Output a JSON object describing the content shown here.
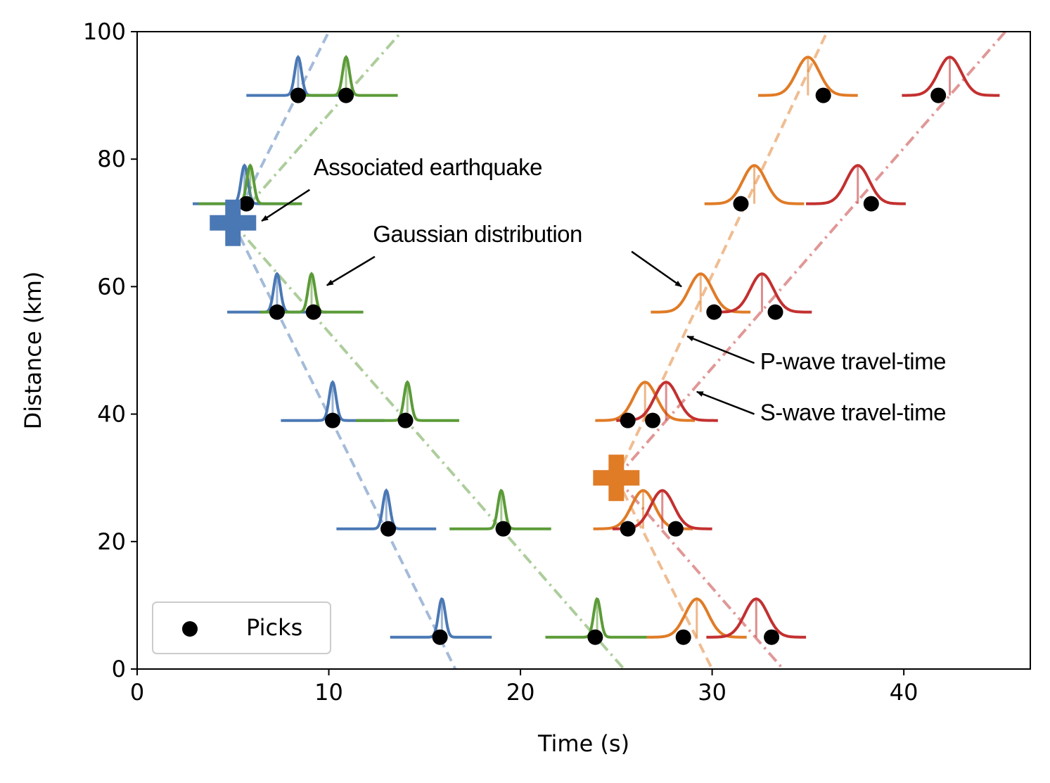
{
  "chart_data": {
    "type": "scatter",
    "title": "",
    "xlabel": "Time (s)",
    "ylabel": "Distance (km)",
    "xlim": [
      0,
      46.6
    ],
    "ylim": [
      0,
      100
    ],
    "xticks": [
      0,
      10,
      20,
      30,
      40
    ],
    "yticks": [
      0,
      20,
      40,
      60,
      80,
      100
    ],
    "grid": false,
    "legend": {
      "position": "bottom-left",
      "label": "Picks"
    },
    "colors": {
      "p1": "#4a78b4",
      "s1": "#5b9b37",
      "p2": "#e07b26",
      "s2": "#c33030",
      "pick": "#000000"
    },
    "earthquakes": [
      {
        "id": "eq1",
        "t0": 5.0,
        "d0": 70,
        "color_p": "#4a78b4",
        "color_s": "#5b9b37",
        "vp_slope": 8.5,
        "vs_slope": 4.8
      },
      {
        "id": "eq2",
        "t0": 25.0,
        "d0": 30,
        "color_p": "#e07b26",
        "color_s": "#c33030",
        "vp_slope": 6.2,
        "vs_slope": 4.0
      }
    ],
    "travel_time_lines": [
      {
        "name": "eq1-P-travel-time",
        "color": "#4a78b4",
        "style": "dashed",
        "x": [
          5.0,
          16.6
        ],
        "y": [
          70,
          0
        ],
        "x2": [
          5.0,
          10.0
        ],
        "y2": [
          70,
          100
        ]
      },
      {
        "name": "eq1-S-travel-time",
        "color": "#5b9b37",
        "style": "dashdot",
        "x": [
          5.0,
          25.4
        ],
        "y": [
          70,
          0
        ],
        "x2": [
          5.0,
          13.8
        ],
        "y2": [
          70,
          100
        ]
      },
      {
        "name": "eq2-P-travel-time",
        "color": "#e07b26",
        "style": "dashed",
        "x": [
          25.0,
          30.0
        ],
        "y": [
          30,
          0
        ],
        "x2": [
          25.0,
          36.0
        ],
        "y2": [
          30,
          100
        ]
      },
      {
        "name": "eq2-S-travel-time",
        "color": "#c33030",
        "style": "dashdot",
        "x": [
          25.0,
          33.7
        ],
        "y": [
          30,
          0
        ],
        "x2": [
          25.0,
          45.3
        ],
        "y2": [
          30,
          100
        ]
      }
    ],
    "picks": [
      {
        "t": 8.4,
        "d": 90
      },
      {
        "t": 10.9,
        "d": 90
      },
      {
        "t": 35.8,
        "d": 90
      },
      {
        "t": 41.8,
        "d": 90
      },
      {
        "t": 5.7,
        "d": 73
      },
      {
        "t": 31.5,
        "d": 73
      },
      {
        "t": 38.3,
        "d": 73
      },
      {
        "t": 7.3,
        "d": 56
      },
      {
        "t": 9.2,
        "d": 56
      },
      {
        "t": 30.1,
        "d": 56
      },
      {
        "t": 33.3,
        "d": 56
      },
      {
        "t": 10.2,
        "d": 39
      },
      {
        "t": 14.0,
        "d": 39
      },
      {
        "t": 25.6,
        "d": 39
      },
      {
        "t": 26.9,
        "d": 39
      },
      {
        "t": 13.1,
        "d": 22
      },
      {
        "t": 19.1,
        "d": 22
      },
      {
        "t": 25.6,
        "d": 22
      },
      {
        "t": 28.1,
        "d": 22
      },
      {
        "t": 15.8,
        "d": 5
      },
      {
        "t": 23.9,
        "d": 5
      },
      {
        "t": 28.5,
        "d": 5
      },
      {
        "t": 33.1,
        "d": 5
      }
    ],
    "gaussians": [
      {
        "name": "eq1-P",
        "color": "#4a78b4",
        "mu": 8.4,
        "sigma": 0.18,
        "d": 90,
        "xmin": 5.7,
        "xmax": 11.1,
        "height": 6
      },
      {
        "name": "eq1-S",
        "color": "#5b9b37",
        "mu": 10.9,
        "sigma": 0.18,
        "d": 90,
        "xmin": 8.2,
        "xmax": 13.6,
        "height": 6
      },
      {
        "name": "eq2-P",
        "color": "#e07b26",
        "mu": 35.0,
        "sigma": 0.6,
        "d": 90,
        "xmin": 32.4,
        "xmax": 37.6,
        "height": 6
      },
      {
        "name": "eq2-S",
        "color": "#c33030",
        "mu": 42.4,
        "sigma": 0.6,
        "d": 90,
        "xmin": 39.9,
        "xmax": 45.0,
        "height": 6
      },
      {
        "name": "eq1-P",
        "color": "#4a78b4",
        "mu": 5.6,
        "sigma": 0.18,
        "d": 73,
        "xmin": 2.9,
        "xmax": 8.3,
        "height": 6
      },
      {
        "name": "eq1-S",
        "color": "#5b9b37",
        "mu": 5.9,
        "sigma": 0.18,
        "d": 73,
        "xmin": 3.2,
        "xmax": 8.6,
        "height": 6
      },
      {
        "name": "eq2-P",
        "color": "#e07b26",
        "mu": 32.2,
        "sigma": 0.6,
        "d": 73,
        "xmin": 29.6,
        "xmax": 34.8,
        "height": 6
      },
      {
        "name": "eq2-S",
        "color": "#c33030",
        "mu": 37.6,
        "sigma": 0.6,
        "d": 73,
        "xmin": 34.9,
        "xmax": 40.1,
        "height": 6
      },
      {
        "name": "eq1-P",
        "color": "#4a78b4",
        "mu": 7.3,
        "sigma": 0.18,
        "d": 56,
        "xmin": 4.7,
        "xmax": 9.9,
        "height": 6
      },
      {
        "name": "eq1-S",
        "color": "#5b9b37",
        "mu": 9.1,
        "sigma": 0.18,
        "d": 56,
        "xmin": 6.4,
        "xmax": 11.8,
        "height": 6
      },
      {
        "name": "eq2-P",
        "color": "#e07b26",
        "mu": 29.4,
        "sigma": 0.6,
        "d": 56,
        "xmin": 26.8,
        "xmax": 32.0,
        "height": 6
      },
      {
        "name": "eq2-S",
        "color": "#c33030",
        "mu": 32.6,
        "sigma": 0.6,
        "d": 56,
        "xmin": 30.0,
        "xmax": 35.2,
        "height": 6
      },
      {
        "name": "eq1-P",
        "color": "#4a78b4",
        "mu": 10.2,
        "sigma": 0.18,
        "d": 39,
        "xmin": 7.5,
        "xmax": 12.9,
        "height": 6
      },
      {
        "name": "eq1-S",
        "color": "#5b9b37",
        "mu": 14.1,
        "sigma": 0.18,
        "d": 39,
        "xmin": 11.4,
        "xmax": 16.8,
        "height": 6
      },
      {
        "name": "eq2-P",
        "color": "#e07b26",
        "mu": 26.5,
        "sigma": 0.6,
        "d": 39,
        "xmin": 23.9,
        "xmax": 29.1,
        "height": 6
      },
      {
        "name": "eq2-S",
        "color": "#c33030",
        "mu": 27.6,
        "sigma": 0.6,
        "d": 39,
        "xmin": 25.0,
        "xmax": 30.3,
        "height": 6
      },
      {
        "name": "eq1-P",
        "color": "#4a78b4",
        "mu": 13.0,
        "sigma": 0.18,
        "d": 22,
        "xmin": 10.4,
        "xmax": 15.6,
        "height": 6
      },
      {
        "name": "eq1-S",
        "color": "#5b9b37",
        "mu": 19.0,
        "sigma": 0.18,
        "d": 22,
        "xmin": 16.3,
        "xmax": 21.6,
        "height": 6
      },
      {
        "name": "eq2-P",
        "color": "#e07b26",
        "mu": 26.4,
        "sigma": 0.6,
        "d": 22,
        "xmin": 23.8,
        "xmax": 29.0,
        "height": 6
      },
      {
        "name": "eq2-S",
        "color": "#c33030",
        "mu": 27.4,
        "sigma": 0.6,
        "d": 22,
        "xmin": 24.8,
        "xmax": 30.0,
        "height": 6
      },
      {
        "name": "eq1-P",
        "color": "#4a78b4",
        "mu": 15.9,
        "sigma": 0.18,
        "d": 5,
        "xmin": 13.2,
        "xmax": 18.5,
        "height": 6
      },
      {
        "name": "eq1-S",
        "color": "#5b9b37",
        "mu": 24.0,
        "sigma": 0.18,
        "d": 5,
        "xmin": 21.3,
        "xmax": 26.6,
        "height": 6
      },
      {
        "name": "eq2-P",
        "color": "#e07b26",
        "mu": 29.2,
        "sigma": 0.6,
        "d": 5,
        "xmin": 26.6,
        "xmax": 31.8,
        "height": 6
      },
      {
        "name": "eq2-S",
        "color": "#c33030",
        "mu": 32.3,
        "sigma": 0.6,
        "d": 5,
        "xmin": 29.7,
        "xmax": 34.9,
        "height": 6
      }
    ],
    "annotations": [
      {
        "text": "Associated earthquake",
        "text_x": 9.2,
        "text_y": 77.5,
        "arrow_to_x": 6.5,
        "arrow_to_y": 70.3,
        "arrow_from_x": 9.0,
        "arrow_from_y": 75.2
      },
      {
        "text": "Gaussian distribution",
        "text_x": 12.3,
        "text_y": 67.0,
        "arrow_to_x": 9.9,
        "arrow_to_y": 60.2,
        "arrow_from_x": 12.4,
        "arrow_from_y": 64.7
      },
      {
        "text": "",
        "text_x": 0,
        "text_y": 0,
        "arrow_to_x": 28.4,
        "arrow_to_y": 60.0,
        "arrow_from_x": 25.8,
        "arrow_from_y": 65.5
      },
      {
        "text": "P-wave travel-time",
        "text_x": 32.5,
        "text_y": 47.0,
        "arrow_to_x": 28.7,
        "arrow_to_y": 52.2,
        "arrow_from_x": 32.2,
        "arrow_from_y": 48.0
      },
      {
        "text": "S-wave travel-time",
        "text_x": 32.5,
        "text_y": 39.0,
        "arrow_to_x": 29.2,
        "arrow_to_y": 43.5,
        "arrow_from_x": 32.2,
        "arrow_from_y": 40.0
      }
    ]
  }
}
